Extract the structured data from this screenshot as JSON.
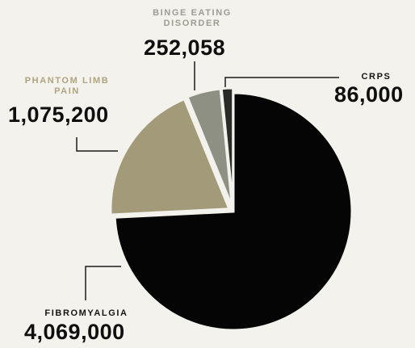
{
  "chart_data": {
    "type": "pie",
    "slices": [
      {
        "label": "FIBROMYALGIA",
        "value": 4069000,
        "value_label": "4,069,000",
        "color": "#050505"
      },
      {
        "label": "PHANTOM LIMB PAIN",
        "value": 1075200,
        "value_label": "1,075,200",
        "color": "#a39a7a"
      },
      {
        "label": "BINGE EATING DISORDER",
        "value": 252058,
        "value_label": "252,058",
        "color": "#8e9083"
      },
      {
        "label": "CRPS",
        "value": 86000,
        "value_label": "86,000",
        "color": "#2a2a26"
      }
    ],
    "label_colors": {
      "FIBROMYALGIA": "#141414",
      "PHANTOM LIMB PAIN": "#b0a37e",
      "BINGE EATING DISORDER": "#9c9c94",
      "CRPS": "#141414"
    },
    "background": "#f3f2ec"
  }
}
